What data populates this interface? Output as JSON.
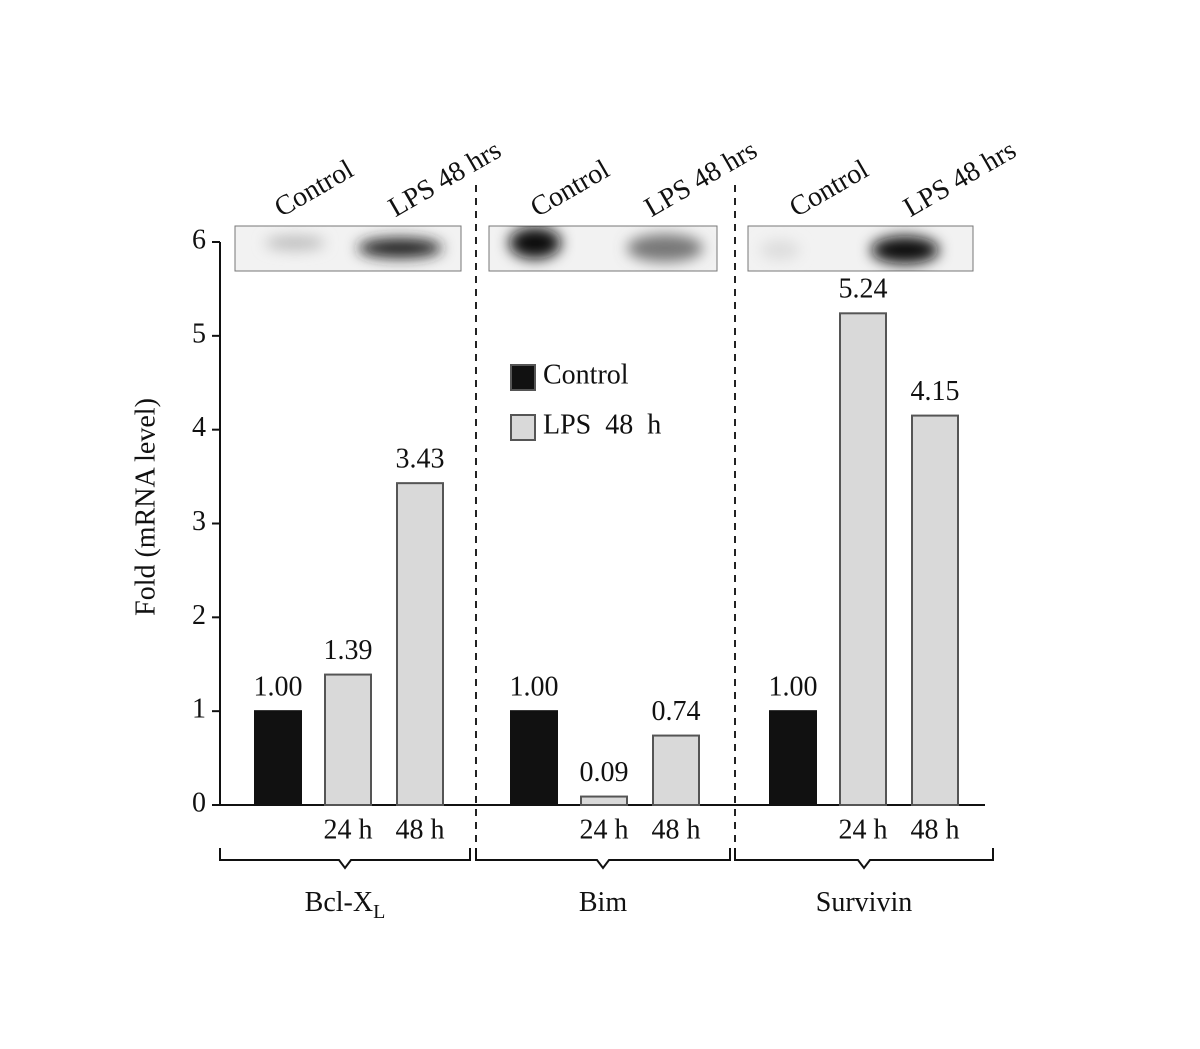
{
  "chart_data": {
    "type": "bar",
    "y_label": "Fold (mRNA level)",
    "ylim": [
      0,
      6
    ],
    "yticks": [
      0,
      1,
      2,
      3,
      4,
      5,
      6
    ],
    "series": [
      {
        "name": "Control",
        "color": "#111111"
      },
      {
        "name": "LPS  48  h",
        "color": "#d9d9d9"
      }
    ],
    "groups": [
      {
        "name": "Bcl-X",
        "subscript": "L",
        "blot_labels": [
          "Control",
          "LPS 48 hrs"
        ],
        "categories": [
          null,
          "24 h",
          "48 h"
        ],
        "values": [
          1,
          1.39,
          3.43
        ],
        "value_labels": [
          "1.00",
          "1.39",
          "3.43"
        ],
        "colors": [
          "#111111",
          "#d9d9d9",
          "#d9d9d9"
        ]
      },
      {
        "name": "Bim",
        "blot_labels": [
          "Control",
          "LPS 48 hrs"
        ],
        "categories": [
          null,
          "24 h",
          "48 h"
        ],
        "values": [
          1,
          0.09,
          0.74
        ],
        "value_labels": [
          "1.00",
          "0.09",
          "0.74"
        ],
        "colors": [
          "#111111",
          "#d9d9d9",
          "#d9d9d9"
        ]
      },
      {
        "name": "Survivin",
        "blot_labels": [
          "Control",
          "LPS 48 hrs"
        ],
        "categories": [
          null,
          "24 h",
          "48 h"
        ],
        "values": [
          1,
          5.24,
          4.15
        ],
        "value_labels": [
          "1.00",
          "5.24",
          "4.15"
        ],
        "colors": [
          "#111111",
          "#d9d9d9",
          "#d9d9d9"
        ]
      }
    ]
  }
}
